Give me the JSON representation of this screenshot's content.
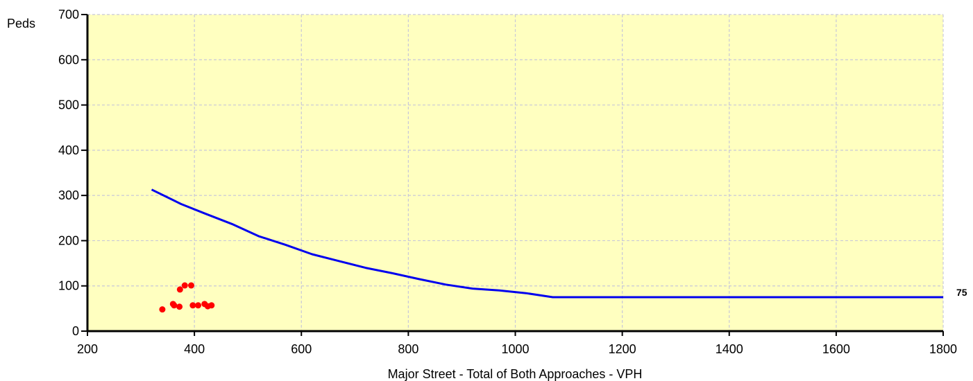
{
  "chart_data": {
    "type": "line",
    "title": "",
    "xlabel": "Major Street - Total of Both Approaches - VPH",
    "ylabel": "Peds",
    "xlim": [
      200,
      1800
    ],
    "ylim": [
      0,
      700
    ],
    "x_ticks": [
      200,
      400,
      600,
      800,
      1000,
      1200,
      1400,
      1600,
      1800
    ],
    "y_ticks": [
      0,
      100,
      200,
      300,
      400,
      500,
      600,
      700
    ],
    "grid": true,
    "plot_background": "#ffffc0",
    "grid_color": "#c8c8d8",
    "series": [
      {
        "kind": "line",
        "color": "#0000ee",
        "end_label": "75",
        "points": [
          [
            320,
            313
          ],
          [
            375,
            281
          ],
          [
            420,
            260
          ],
          [
            470,
            237
          ],
          [
            520,
            210
          ],
          [
            570,
            191
          ],
          [
            620,
            170
          ],
          [
            670,
            155
          ],
          [
            720,
            140
          ],
          [
            770,
            128
          ],
          [
            820,
            115
          ],
          [
            870,
            103
          ],
          [
            920,
            94
          ],
          [
            970,
            90
          ],
          [
            1020,
            84
          ],
          [
            1070,
            75
          ],
          [
            1800,
            75
          ]
        ]
      },
      {
        "kind": "scatter",
        "color": "#ff0000",
        "points": [
          [
            340,
            48
          ],
          [
            360,
            60
          ],
          [
            362,
            57
          ],
          [
            372,
            54
          ],
          [
            373,
            92
          ],
          [
            382,
            101
          ],
          [
            394,
            101
          ],
          [
            397,
            57
          ],
          [
            407,
            57
          ],
          [
            419,
            60
          ],
          [
            425,
            55
          ],
          [
            432,
            57
          ]
        ]
      }
    ]
  }
}
